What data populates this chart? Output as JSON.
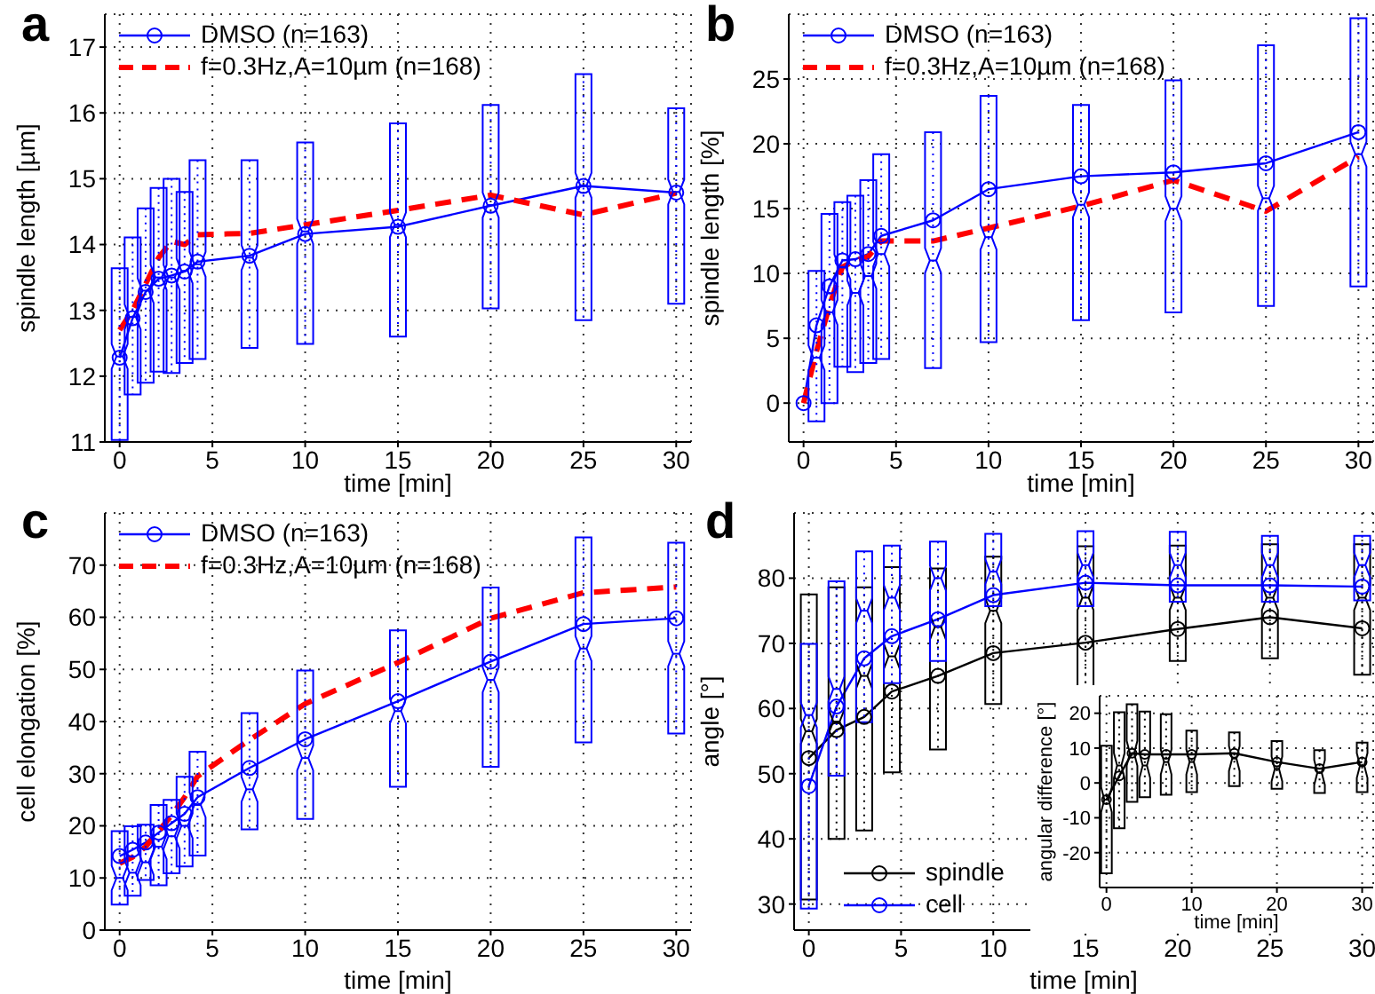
{
  "chart_data": [
    {
      "type": "box",
      "title": "a",
      "xlabel": "time [min]",
      "ylabel": "spindle length [µm]",
      "xlim": [
        -0.8,
        30.8
      ],
      "xticks": [
        0,
        5,
        10,
        15,
        20,
        25,
        30
      ],
      "ylim": [
        11,
        17.5
      ],
      "yticks": [
        11,
        12,
        13,
        14,
        15,
        16,
        17
      ],
      "grid": true,
      "legend": "top left",
      "series": [
        {
          "type": "box",
          "color": "#0000ff",
          "x": [
            0,
            0.7,
            1.4,
            2.1,
            2.8,
            3.5,
            4.2,
            7,
            10,
            15,
            20,
            25,
            30
          ],
          "boxes": [
            {
              "low": 11.03,
              "q1": 11.03,
              "median": 12.3,
              "q3": 13.64,
              "high": 13.64
            },
            {
              "low": 11.72,
              "q1": 11.72,
              "median": 12.9,
              "q3": 14.11,
              "high": 14.11
            },
            {
              "low": 11.9,
              "q1": 11.9,
              "median": 13.3,
              "q3": 14.55,
              "high": 14.55
            },
            {
              "low": 12.07,
              "q1": 12.07,
              "median": 13.5,
              "q3": 14.86,
              "high": 14.86
            },
            {
              "low": 12.05,
              "q1": 12.05,
              "median": 13.5,
              "q3": 15.0,
              "high": 15.0
            },
            {
              "low": 12.2,
              "q1": 12.2,
              "median": 13.6,
              "q3": 14.8,
              "high": 14.8
            },
            {
              "low": 12.26,
              "q1": 12.26,
              "median": 13.7,
              "q3": 15.28,
              "high": 15.28
            },
            {
              "low": 12.43,
              "q1": 12.43,
              "median": 13.8,
              "q3": 15.28,
              "high": 15.28
            },
            {
              "low": 12.49,
              "q1": 12.49,
              "median": 14.2,
              "q3": 15.55,
              "high": 15.55
            },
            {
              "low": 12.6,
              "q1": 12.6,
              "median": 14.3,
              "q3": 15.84,
              "high": 15.84
            },
            {
              "low": 13.03,
              "q1": 13.03,
              "median": 14.6,
              "q3": 16.12,
              "high": 16.12
            },
            {
              "low": 12.85,
              "q1": 12.85,
              "median": 14.9,
              "q3": 16.59,
              "high": 16.59
            },
            {
              "low": 13.1,
              "q1": 13.1,
              "median": 14.8,
              "q3": 16.07,
              "high": 16.07
            }
          ]
        },
        {
          "type": "line",
          "name": "DMSO (n=163)",
          "color": "#0000ff",
          "marker": "circle",
          "line_style": "solid",
          "x": [
            0,
            0.7,
            1.4,
            2.1,
            2.8,
            3.5,
            4.2,
            7,
            10,
            15,
            20,
            25,
            30
          ],
          "values": [
            12.28,
            12.88,
            13.28,
            13.48,
            13.53,
            13.59,
            13.74,
            13.83,
            14.16,
            14.27,
            14.59,
            14.89,
            14.79
          ]
        },
        {
          "type": "line",
          "name": "f=0.3Hz,A=10µm (n=168)",
          "color": "#ff0000",
          "marker": "none",
          "line_style": "dashed",
          "x": [
            0,
            0.7,
            1.4,
            2.1,
            2.8,
            3.5,
            4.2,
            7,
            10,
            15,
            20,
            25,
            30
          ],
          "values": [
            12.7,
            13.0,
            13.4,
            13.8,
            14.05,
            14.0,
            14.15,
            14.17,
            14.3,
            14.52,
            14.75,
            14.45,
            14.78
          ]
        }
      ]
    },
    {
      "type": "box",
      "title": "b",
      "xlabel": "time [min]",
      "ylabel": "spindle length [%]",
      "xlim": [
        -0.8,
        30.8
      ],
      "xticks": [
        0,
        5,
        10,
        15,
        20,
        25,
        30
      ],
      "ylim": [
        -3,
        30
      ],
      "yticks": [
        0,
        5,
        10,
        15,
        20,
        25
      ],
      "grid": true,
      "legend": "top left",
      "series": [
        {
          "type": "box",
          "color": "#0000ff",
          "x": [
            0.7,
            1.4,
            2.1,
            2.8,
            3.5,
            4.2,
            7,
            10,
            15,
            20,
            25,
            30
          ],
          "boxes": [
            {
              "low": -1.4,
              "q1": -1.4,
              "median": 3.5,
              "q3": 10.2,
              "high": 10.2
            },
            {
              "low": 0,
              "q1": 0,
              "median": 7,
              "q3": 14.6,
              "high": 14.6
            },
            {
              "low": 2.8,
              "q1": 2.8,
              "median": 10.5,
              "q3": 15.5,
              "high": 15.5
            },
            {
              "low": 2.4,
              "q1": 2.4,
              "median": 8.5,
              "q3": 16,
              "high": 16
            },
            {
              "low": 3.1,
              "q1": 3.1,
              "median": 9.8,
              "q3": 17.2,
              "high": 17.2
            },
            {
              "low": 3.4,
              "q1": 3.4,
              "median": 11.5,
              "q3": 19.2,
              "high": 19.2
            },
            {
              "low": 2.7,
              "q1": 2.7,
              "median": 11,
              "q3": 20.9,
              "high": 20.9
            },
            {
              "low": 4.7,
              "q1": 4.7,
              "median": 12.8,
              "q3": 23.7,
              "high": 23.7
            },
            {
              "low": 6.4,
              "q1": 6.4,
              "median": 15.3,
              "q3": 23,
              "high": 23
            },
            {
              "low": 7,
              "q1": 7,
              "median": 15,
              "q3": 24.9,
              "high": 24.9
            },
            {
              "low": 7.5,
              "q1": 7.5,
              "median": 15.8,
              "q3": 27.6,
              "high": 27.6
            },
            {
              "low": 9,
              "q1": 9,
              "median": 19.2,
              "q3": 29.7,
              "high": 29.7
            }
          ]
        },
        {
          "type": "line",
          "name": "DMSO (n=163)",
          "color": "#0000ff",
          "marker": "circle",
          "line_style": "solid",
          "x": [
            0,
            0.7,
            1.4,
            2.1,
            2.8,
            3.5,
            4.2,
            7,
            10,
            15,
            20,
            25,
            30
          ],
          "values": [
            0,
            6,
            9,
            11,
            11.1,
            11.5,
            12.9,
            14.1,
            16.5,
            17.5,
            17.8,
            18.5,
            20.9
          ]
        },
        {
          "type": "line",
          "name": "f=0.3Hz,A=10µm (n=168)",
          "color": "#ff0000",
          "marker": "none",
          "line_style": "dashed",
          "x": [
            0,
            0.7,
            1.4,
            2.1,
            2.8,
            3.5,
            4.2,
            7,
            10,
            15,
            20,
            25,
            30
          ],
          "values": [
            0,
            4,
            7.5,
            10.5,
            11,
            11.3,
            12.5,
            12.5,
            13.5,
            15.2,
            17.2,
            14.8,
            19
          ]
        }
      ]
    },
    {
      "type": "box",
      "title": "c",
      "xlabel": "time [min]",
      "ylabel": "cell elongation [%]",
      "xlim": [
        -0.8,
        30.8
      ],
      "xticks": [
        0,
        5,
        10,
        15,
        20,
        25,
        30
      ],
      "ylim": [
        0,
        80
      ],
      "yticks": [
        0,
        10,
        20,
        30,
        40,
        50,
        60,
        70
      ],
      "grid": true,
      "legend": "top left",
      "series": [
        {
          "type": "box",
          "color": "#0000ff",
          "x": [
            0,
            0.7,
            1.4,
            2.1,
            2.8,
            3.5,
            4.2,
            7,
            10,
            15,
            20,
            25,
            30
          ],
          "boxes": [
            {
              "low": 4.9,
              "q1": 4.9,
              "median": 10,
              "q3": 19,
              "high": 19
            },
            {
              "low": 6.6,
              "q1": 6.6,
              "median": 11,
              "q3": 19.9,
              "high": 19.9
            },
            {
              "low": 9.6,
              "q1": 9.6,
              "median": 13,
              "q3": 20.2,
              "high": 20.2
            },
            {
              "low": 8.6,
              "q1": 8.6,
              "median": 16,
              "q3": 24,
              "high": 24
            },
            {
              "low": 10.9,
              "q1": 10.9,
              "median": 18,
              "q3": 25,
              "high": 25
            },
            {
              "low": 12.2,
              "q1": 12.2,
              "median": 20,
              "q3": 29.4,
              "high": 29.4
            },
            {
              "low": 14.3,
              "q1": 14.3,
              "median": 24,
              "q3": 34.2,
              "high": 34.2
            },
            {
              "low": 19.3,
              "q1": 19.3,
              "median": 27,
              "q3": 41.6,
              "high": 41.6
            },
            {
              "low": 21.3,
              "q1": 21.3,
              "median": 33,
              "q3": 49.8,
              "high": 49.8
            },
            {
              "low": 27.5,
              "q1": 27.5,
              "median": 42,
              "q3": 57.5,
              "high": 57.5
            },
            {
              "low": 31.3,
              "q1": 31.3,
              "median": 48,
              "q3": 65.7,
              "high": 65.7
            },
            {
              "low": 36,
              "q1": 36,
              "median": 54,
              "q3": 75.3,
              "high": 75.3
            },
            {
              "low": 37.7,
              "q1": 37.7,
              "median": 53,
              "q3": 74.3,
              "high": 74.3
            }
          ]
        },
        {
          "type": "line",
          "name": "DMSO (n=163)",
          "color": "#0000ff",
          "marker": "circle",
          "line_style": "solid",
          "x": [
            0,
            0.7,
            1.4,
            2.1,
            2.8,
            3.5,
            4.2,
            7,
            10,
            15,
            20,
            25,
            30
          ],
          "values": [
            14.2,
            15.4,
            16.8,
            18.7,
            20.5,
            22.3,
            25.5,
            31.1,
            36.6,
            43.9,
            51.5,
            58.7,
            59.8
          ]
        },
        {
          "type": "line",
          "name": "f=0.3Hz,A=10µm (n=168)",
          "color": "#ff0000",
          "marker": "none",
          "line_style": "dashed",
          "x": [
            0,
            0.7,
            1.4,
            2.1,
            2.8,
            3.5,
            4.2,
            7,
            10,
            15,
            20,
            25,
            30
          ],
          "values": [
            12.8,
            14,
            16,
            19,
            22,
            25.5,
            29.5,
            36.5,
            43.4,
            51.3,
            59.8,
            64.7,
            65.8
          ]
        }
      ]
    },
    {
      "type": "box",
      "title": "d",
      "xlabel": "time [min]",
      "ylabel": "angle [°]",
      "xlim": [
        -0.8,
        30.6
      ],
      "xticks": [
        0,
        5,
        10,
        15,
        20,
        25,
        30
      ],
      "ylim": [
        26,
        90
      ],
      "yticks": [
        30,
        40,
        50,
        60,
        70,
        80
      ],
      "grid": true,
      "legend": "bottom left",
      "series": [
        {
          "type": "box",
          "color": "#000000",
          "x": [
            0,
            1.5,
            3,
            4.5,
            7,
            10,
            15,
            20,
            25,
            30
          ],
          "boxes": [
            {
              "low": 30.7,
              "q1": 30.7,
              "median": 56.5,
              "q3": 77.5,
              "high": 77.5
            },
            {
              "low": 40,
              "q1": 40,
              "median": 58,
              "q3": 78.6,
              "high": 78.6
            },
            {
              "low": 41.3,
              "q1": 41.3,
              "median": 65,
              "q3": 78.6,
              "high": 78.6
            },
            {
              "low": 50.2,
              "q1": 50.2,
              "median": 68,
              "q3": 81.7,
              "high": 81.7
            },
            {
              "low": 53.7,
              "q1": 53.7,
              "median": 72.5,
              "q3": 81.5,
              "high": 81.5
            },
            {
              "low": 60.7,
              "q1": 60.7,
              "median": 75,
              "q3": 83.3,
              "high": 83.3
            },
            {
              "low": 62,
              "q1": 62,
              "median": 77,
              "q3": 84.9,
              "high": 84.9
            },
            {
              "low": 67.3,
              "q1": 67.3,
              "median": 77,
              "q3": 85,
              "high": 85
            },
            {
              "low": 67.7,
              "q1": 67.7,
              "median": 77,
              "q3": 85.2,
              "high": 85.2
            },
            {
              "low": 65.2,
              "q1": 65.2,
              "median": 77,
              "q3": 85.2,
              "high": 85.2
            }
          ]
        },
        {
          "type": "box",
          "color": "#0000ff",
          "x": [
            0,
            1.5,
            3,
            4.5,
            7,
            10,
            15,
            20,
            25,
            30
          ],
          "boxes": [
            {
              "low": 29.3,
              "q1": 29.3,
              "median": 59,
              "q3": 69.9,
              "high": 69.9
            },
            {
              "low": 49.7,
              "q1": 49.7,
              "median": 63,
              "q3": 79.5,
              "high": 79.5
            },
            {
              "low": 57.9,
              "q1": 57.9,
              "median": 75,
              "q3": 84.1,
              "high": 84.1
            },
            {
              "low": 63.9,
              "q1": 63.9,
              "median": 77,
              "q3": 85,
              "high": 85
            },
            {
              "low": 67.3,
              "q1": 67.3,
              "median": 80,
              "q3": 85.6,
              "high": 85.6
            },
            {
              "low": 75.7,
              "q1": 75.7,
              "median": 81,
              "q3": 86.8,
              "high": 86.8
            },
            {
              "low": 75.7,
              "q1": 75.7,
              "median": 82,
              "q3": 87.2,
              "high": 87.2
            },
            {
              "low": 76.4,
              "q1": 76.4,
              "median": 82,
              "q3": 87.1,
              "high": 87.1
            },
            {
              "low": 76.4,
              "q1": 76.4,
              "median": 82,
              "q3": 86.5,
              "high": 86.5
            },
            {
              "low": 76.6,
              "q1": 76.6,
              "median": 82,
              "q3": 86.5,
              "high": 86.5
            }
          ]
        },
        {
          "type": "line",
          "name": "spindle",
          "color": "#000000",
          "marker": "circle",
          "line_style": "solid",
          "x": [
            0,
            1.5,
            3,
            4.5,
            7,
            10,
            15,
            20,
            25,
            30
          ],
          "values": [
            52.4,
            56.7,
            58.7,
            62.6,
            65,
            68.5,
            70.1,
            72.2,
            74,
            72.3
          ]
        },
        {
          "type": "line",
          "name": "cell",
          "color": "#0000ff",
          "marker": "circle",
          "line_style": "solid",
          "x": [
            0,
            1.5,
            3,
            4.5,
            7,
            10,
            15,
            20,
            25,
            30
          ],
          "values": [
            48.1,
            60.3,
            67.7,
            71.1,
            73.7,
            77.4,
            79.3,
            78.9,
            78.9,
            78.7
          ]
        }
      ]
    },
    {
      "type": "box",
      "xlabel": "time [min]",
      "ylabel": "angular difference [°]",
      "xlim": [
        -0.8,
        31.3
      ],
      "xticks": [
        0,
        10,
        20,
        30
      ],
      "ylim": [
        -30,
        25
      ],
      "yticks": [
        -20,
        -10,
        0,
        10,
        20
      ],
      "grid": true,
      "series": [
        {
          "type": "box",
          "color": "#000000",
          "x": [
            0,
            1.5,
            3,
            4.5,
            7,
            10,
            15,
            20,
            25,
            30
          ],
          "boxes": [
            {
              "low": -25.9,
              "q1": -25.9,
              "median": -4.8,
              "q3": 10.7,
              "high": 10.7
            },
            {
              "low": -13,
              "q1": -13,
              "median": 5,
              "q3": 20.3,
              "high": 20.3
            },
            {
              "low": -5.4,
              "q1": -5.4,
              "median": 8.5,
              "q3": 22.6,
              "high": 22.6
            },
            {
              "low": -4.1,
              "q1": -4.1,
              "median": 5,
              "q3": 20.5,
              "high": 20.5
            },
            {
              "low": -3.4,
              "q1": -3.4,
              "median": 6,
              "q3": 19.7,
              "high": 19.7
            },
            {
              "low": -2.6,
              "q1": -2.6,
              "median": 6,
              "q3": 15,
              "high": 15
            },
            {
              "low": -0.9,
              "q1": -0.9,
              "median": 7,
              "q3": 14.5,
              "high": 14.5
            },
            {
              "low": -1.7,
              "q1": -1.7,
              "median": 4,
              "q3": 12,
              "high": 12
            },
            {
              "low": -2.9,
              "q1": -2.9,
              "median": 3,
              "q3": 9.4,
              "high": 9.4
            },
            {
              "low": -2.6,
              "q1": -2.6,
              "median": 5,
              "q3": 11.6,
              "high": 11.6
            }
          ]
        },
        {
          "type": "line",
          "color": "#000000",
          "marker": "circle",
          "line_style": "solid",
          "x": [
            0,
            1.5,
            3,
            4.5,
            7,
            10,
            15,
            20,
            25,
            30
          ],
          "values": [
            -4.8,
            2,
            8.5,
            8.2,
            8.2,
            8.2,
            8.5,
            6,
            4.1,
            6
          ]
        }
      ]
    }
  ]
}
